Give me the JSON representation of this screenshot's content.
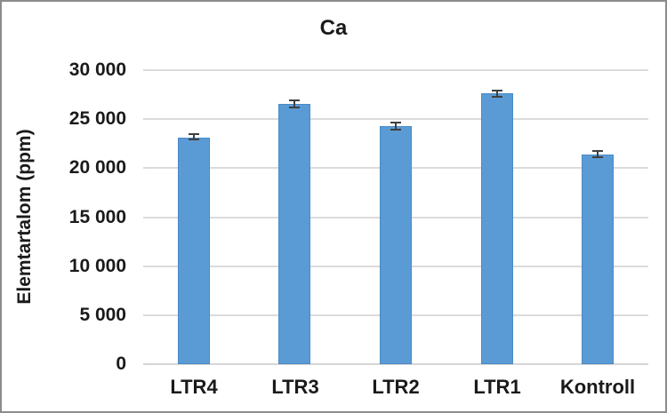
{
  "title": "Ca",
  "chart_data": {
    "type": "bar",
    "title": "Ca",
    "ylabel": "Elemtartalom (ppm)",
    "xlabel": "",
    "categories": [
      "LTR4",
      "LTR3",
      "LTR2",
      "LTR1",
      "Kontroll"
    ],
    "values": [
      23150,
      26600,
      24250,
      27600,
      21400
    ],
    "error_bars": [
      370,
      450,
      460,
      390,
      420
    ],
    "ylim": [
      0,
      30000
    ],
    "ytick_interval": 5000,
    "yticks": [
      {
        "value": 0,
        "label": "0"
      },
      {
        "value": 5000,
        "label": "5 000"
      },
      {
        "value": 10000,
        "label": "10 000"
      },
      {
        "value": 15000,
        "label": "15 000"
      },
      {
        "value": 20000,
        "label": "20 000"
      },
      {
        "value": 25000,
        "label": "25 000"
      },
      {
        "value": 30000,
        "label": "30 000"
      }
    ],
    "grid": "horizontal-only",
    "legend_position": "none",
    "bar_color": "#5B9BD5",
    "gridline_color": "#DBDBDB",
    "error_bar_color": "#404040",
    "text_color": "#1a1a1a",
    "frame_border_color": "#8C8C8C"
  }
}
